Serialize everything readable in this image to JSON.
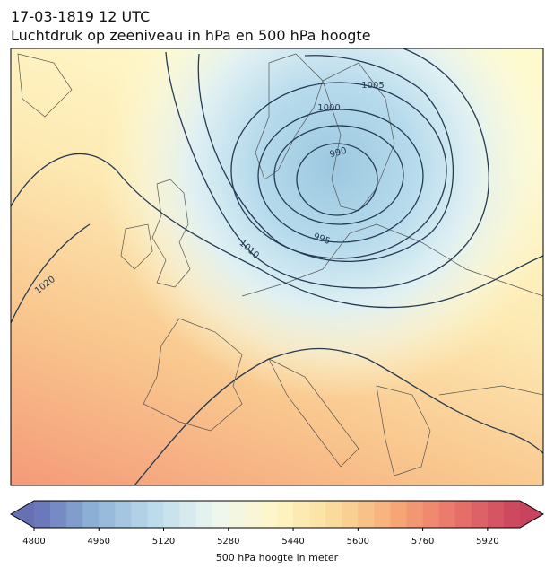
{
  "header": {
    "date": "17-03-1819 12 UTC",
    "title": "Luchtdruk op zeeniveau in hPa en 500 hPa hoogte"
  },
  "map": {
    "contour_labels": [
      1020,
      1010,
      1005,
      1000,
      990,
      995
    ]
  },
  "colorbar": {
    "label": "500 hPa hoogte in meter",
    "range": [
      4800,
      6000
    ],
    "step": 40,
    "ticks": [
      4800,
      4960,
      5120,
      5280,
      5440,
      5600,
      5760,
      5920
    ],
    "colors": [
      "#6670b5",
      "#8fb3d7",
      "#bcdcec",
      "#eef7f0",
      "#fef6c4",
      "#fbd99a",
      "#f6a577",
      "#e8716a",
      "#c8435e"
    ]
  }
}
